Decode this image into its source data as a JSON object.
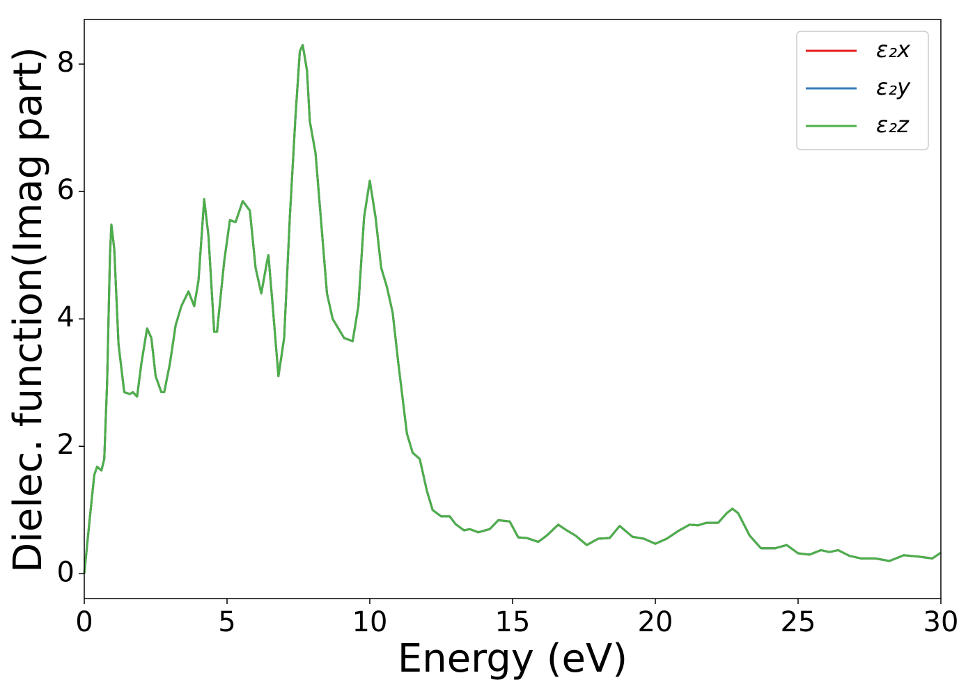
{
  "chart_data": {
    "type": "line",
    "xlabel": "Energy (eV)",
    "ylabel": "Dielec. function(Imag part)",
    "x": [
      0,
      0.2,
      0.35,
      0.45,
      0.6,
      0.7,
      0.8,
      0.9,
      0.95,
      1.05,
      1.2,
      1.4,
      1.6,
      1.7,
      1.85,
      2.0,
      2.2,
      2.35,
      2.5,
      2.7,
      2.8,
      3.0,
      3.2,
      3.4,
      3.65,
      3.85,
      4.0,
      4.2,
      4.35,
      4.55,
      4.65,
      4.9,
      5.1,
      5.3,
      5.55,
      5.8,
      6.0,
      6.2,
      6.4,
      6.45,
      6.6,
      6.8,
      7.0,
      7.2,
      7.4,
      7.55,
      7.65,
      7.8,
      7.9,
      8.1,
      8.3,
      8.5,
      8.7,
      8.9,
      9.1,
      9.4,
      9.6,
      9.8,
      10.0,
      10.2,
      10.4,
      10.6,
      10.8,
      11.0,
      11.3,
      11.5,
      11.75,
      12.0,
      12.2,
      12.5,
      12.8,
      13.0,
      13.3,
      13.5,
      13.8,
      14.2,
      14.5,
      14.9,
      15.2,
      15.5,
      15.9,
      16.2,
      16.6,
      16.9,
      17.2,
      17.6,
      18.0,
      18.4,
      18.75,
      19.2,
      19.6,
      20.0,
      20.4,
      20.8,
      21.2,
      21.5,
      21.8,
      22.2,
      22.5,
      22.7,
      22.9,
      23.3,
      23.7,
      24.2,
      24.6,
      25.0,
      25.4,
      25.8,
      26.1,
      26.4,
      26.8,
      27.2,
      27.7,
      28.2,
      28.7,
      29.2,
      29.7,
      30.0
    ],
    "series": [
      {
        "name": "ε₂x",
        "color": "#e41a1c",
        "values": [
          0,
          0.9,
          1.55,
          1.68,
          1.62,
          1.8,
          3.0,
          5.0,
          5.48,
          5.1,
          3.6,
          2.85,
          2.82,
          2.85,
          2.78,
          3.3,
          3.85,
          3.7,
          3.1,
          2.85,
          2.85,
          3.3,
          3.9,
          4.2,
          4.43,
          4.2,
          4.6,
          5.88,
          5.3,
          3.8,
          3.8,
          4.9,
          5.55,
          5.52,
          5.85,
          5.7,
          4.8,
          4.4,
          4.9,
          5.0,
          4.2,
          3.1,
          3.7,
          5.6,
          7.2,
          8.2,
          8.3,
          7.9,
          7.1,
          6.6,
          5.5,
          4.4,
          4.0,
          3.85,
          3.7,
          3.65,
          4.2,
          5.6,
          6.17,
          5.6,
          4.8,
          4.5,
          4.1,
          3.3,
          2.2,
          1.9,
          1.8,
          1.3,
          1.0,
          0.9,
          0.9,
          0.78,
          0.68,
          0.7,
          0.65,
          0.7,
          0.84,
          0.82,
          0.57,
          0.56,
          0.5,
          0.6,
          0.77,
          0.68,
          0.6,
          0.45,
          0.55,
          0.56,
          0.75,
          0.58,
          0.55,
          0.47,
          0.55,
          0.67,
          0.77,
          0.76,
          0.8,
          0.8,
          0.95,
          1.02,
          0.95,
          0.6,
          0.4,
          0.4,
          0.45,
          0.32,
          0.3,
          0.37,
          0.34,
          0.37,
          0.28,
          0.24,
          0.24,
          0.2,
          0.29,
          0.27,
          0.24,
          0.33
        ]
      },
      {
        "name": "ε₂y",
        "color": "#377eb8",
        "values": [
          0,
          0.9,
          1.55,
          1.68,
          1.62,
          1.8,
          3.0,
          5.0,
          5.48,
          5.1,
          3.6,
          2.85,
          2.82,
          2.85,
          2.78,
          3.3,
          3.85,
          3.7,
          3.1,
          2.85,
          2.85,
          3.3,
          3.9,
          4.2,
          4.43,
          4.2,
          4.6,
          5.88,
          5.3,
          3.8,
          3.8,
          4.9,
          5.55,
          5.52,
          5.85,
          5.7,
          4.8,
          4.4,
          4.9,
          5.0,
          4.2,
          3.1,
          3.7,
          5.6,
          7.2,
          8.2,
          8.3,
          7.9,
          7.1,
          6.6,
          5.5,
          4.4,
          4.0,
          3.85,
          3.7,
          3.65,
          4.2,
          5.6,
          6.17,
          5.6,
          4.8,
          4.5,
          4.1,
          3.3,
          2.2,
          1.9,
          1.8,
          1.3,
          1.0,
          0.9,
          0.9,
          0.78,
          0.68,
          0.7,
          0.65,
          0.7,
          0.84,
          0.82,
          0.57,
          0.56,
          0.5,
          0.6,
          0.77,
          0.68,
          0.6,
          0.45,
          0.55,
          0.56,
          0.75,
          0.58,
          0.55,
          0.47,
          0.55,
          0.67,
          0.77,
          0.76,
          0.8,
          0.8,
          0.95,
          1.02,
          0.95,
          0.6,
          0.4,
          0.4,
          0.45,
          0.32,
          0.3,
          0.37,
          0.34,
          0.37,
          0.28,
          0.24,
          0.24,
          0.2,
          0.29,
          0.27,
          0.24,
          0.33
        ]
      },
      {
        "name": "ε₂z",
        "color": "#4daf4a",
        "values": [
          0,
          0.9,
          1.55,
          1.68,
          1.62,
          1.8,
          3.0,
          5.0,
          5.48,
          5.1,
          3.6,
          2.85,
          2.82,
          2.85,
          2.78,
          3.3,
          3.85,
          3.7,
          3.1,
          2.85,
          2.85,
          3.3,
          3.9,
          4.2,
          4.43,
          4.2,
          4.6,
          5.88,
          5.3,
          3.8,
          3.8,
          4.9,
          5.55,
          5.52,
          5.85,
          5.7,
          4.8,
          4.4,
          4.9,
          5.0,
          4.2,
          3.1,
          3.7,
          5.6,
          7.2,
          8.2,
          8.3,
          7.9,
          7.1,
          6.6,
          5.5,
          4.4,
          4.0,
          3.85,
          3.7,
          3.65,
          4.2,
          5.6,
          6.17,
          5.6,
          4.8,
          4.5,
          4.1,
          3.3,
          2.2,
          1.9,
          1.8,
          1.3,
          1.0,
          0.9,
          0.9,
          0.78,
          0.68,
          0.7,
          0.65,
          0.7,
          0.84,
          0.82,
          0.57,
          0.56,
          0.5,
          0.6,
          0.77,
          0.68,
          0.6,
          0.45,
          0.55,
          0.56,
          0.75,
          0.58,
          0.55,
          0.47,
          0.55,
          0.67,
          0.77,
          0.76,
          0.8,
          0.8,
          0.95,
          1.02,
          0.95,
          0.6,
          0.4,
          0.4,
          0.45,
          0.32,
          0.3,
          0.37,
          0.34,
          0.37,
          0.28,
          0.24,
          0.24,
          0.2,
          0.29,
          0.27,
          0.24,
          0.33
        ]
      }
    ],
    "xlim": [
      0,
      30
    ],
    "xticks": [
      0,
      5,
      10,
      15,
      20,
      25,
      30
    ],
    "ylim": [
      -0.39,
      8.7
    ],
    "yticks": [
      0,
      2,
      4,
      6,
      8
    ],
    "grid": false,
    "legend": "upper right"
  }
}
